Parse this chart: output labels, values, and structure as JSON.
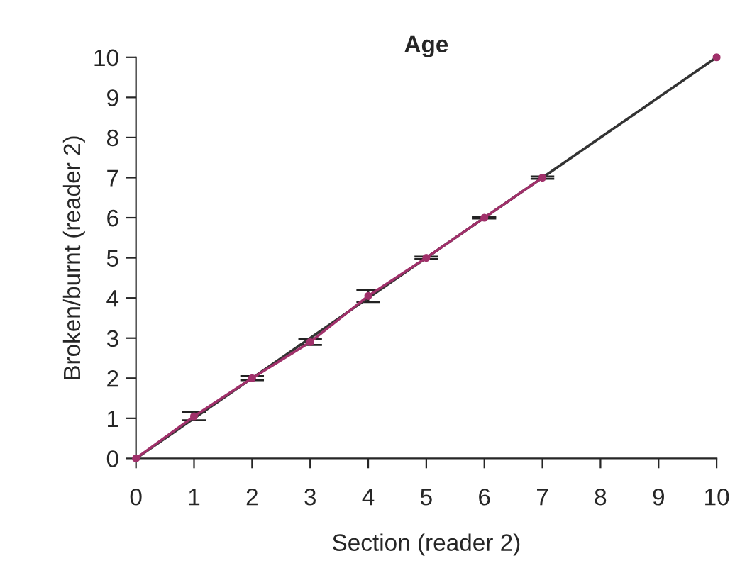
{
  "chart_data": {
    "type": "line",
    "title": "Age",
    "xlabel": "Section (reader 2)",
    "ylabel": "Broken/burnt (reader 2)",
    "series": [
      {
        "color": "#333333",
        "x": [
          0,
          10
        ],
        "values": [
          0,
          10
        ],
        "marker": "none"
      },
      {
        "color": "#a0306a",
        "x": [
          0,
          1,
          2,
          3,
          4,
          5,
          6,
          7,
          8,
          9,
          10
        ],
        "values": [
          0,
          1.05,
          2.0,
          2.9,
          4.05,
          5.0,
          6.0,
          7.0,
          null,
          null,
          10
        ],
        "errors": [
          null,
          0.1,
          0.05,
          0.07,
          0.15,
          0.03,
          0.02,
          0.03,
          null,
          null,
          null
        ],
        "marker": "circle"
      }
    ],
    "xlim": [
      0,
      10
    ],
    "ylim": [
      0,
      10
    ],
    "xticks": [
      0,
      1,
      2,
      3,
      4,
      5,
      6,
      7,
      8,
      9,
      10
    ],
    "yticks": [
      0,
      1,
      2,
      3,
      4,
      5,
      6,
      7,
      8,
      9,
      10
    ],
    "grid": false,
    "legend": false
  }
}
